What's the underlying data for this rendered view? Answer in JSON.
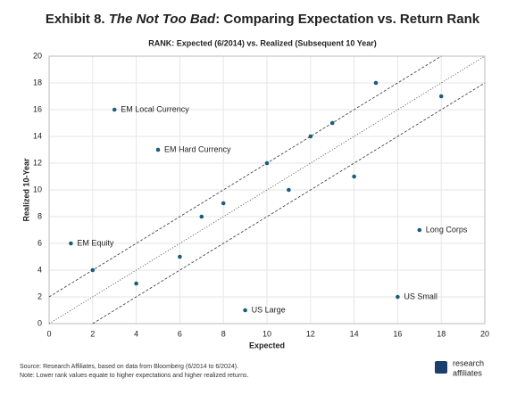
{
  "chart_data": {
    "type": "scatter",
    "title_prefix": "Exhibit 8.",
    "title_italic": "The Not Too Bad",
    "title_suffix": ": Comparing Expectation vs. Return Rank",
    "subtitle": "RANK: Expected (6/2014) vs. Realized (Subsequent 10 Year)",
    "xlabel": "Expected",
    "ylabel": "Realized 10-Year",
    "x": [
      1,
      2,
      3,
      4,
      5,
      6,
      7,
      8,
      9,
      10,
      11,
      12,
      13,
      14,
      15,
      16,
      17,
      18
    ],
    "y": [
      6,
      4,
      16,
      3,
      13,
      5,
      8,
      9,
      1,
      12,
      10,
      14,
      15,
      11,
      18,
      2,
      7,
      17
    ],
    "point_labels": [
      "EM Equity",
      null,
      "EM Local Currency",
      null,
      "EM Hard Currency",
      null,
      null,
      null,
      "US Large",
      null,
      null,
      null,
      null,
      null,
      null,
      "US Small",
      "Long Corps",
      null
    ],
    "color": "#1b5e7b",
    "reference_lines": [
      {
        "intercept": 2,
        "style": "dashed"
      },
      {
        "intercept": 0,
        "style": "dotted"
      },
      {
        "intercept": -2,
        "style": "dashed"
      }
    ],
    "xlim": [
      0,
      20
    ],
    "ylim": [
      0,
      20
    ],
    "xticks": [
      0,
      2,
      4,
      6,
      8,
      10,
      12,
      14,
      16,
      18,
      20
    ],
    "yticks": [
      0,
      2,
      4,
      6,
      8,
      10,
      12,
      14,
      16,
      18,
      20
    ],
    "grid": true,
    "source": [
      "Source: Research Affiliates, based on data from Bloomberg (6/2014 to 6/2024).",
      "Note: Lower rank values equate to higher expectations and higher realized returns."
    ],
    "logo": [
      "research",
      "affiliates"
    ]
  }
}
